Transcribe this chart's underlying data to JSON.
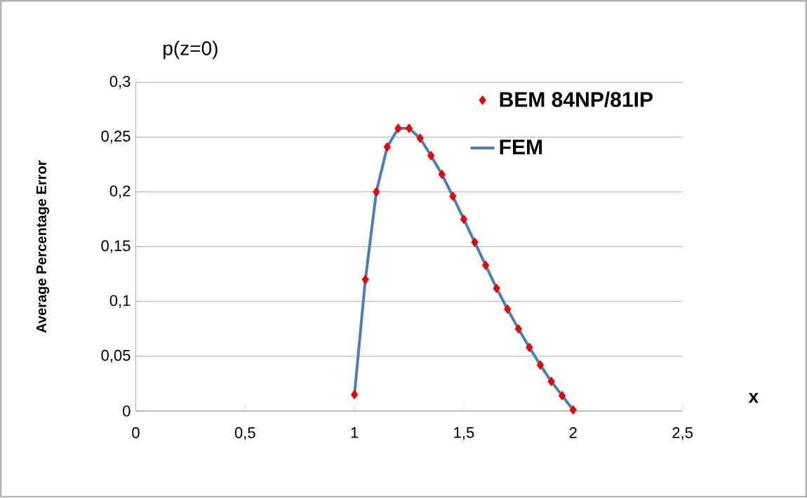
{
  "chart_data": {
    "type": "line",
    "title": "p(z=0)",
    "xlabel": "x",
    "ylabel": "Average Percentage Error",
    "xlim": [
      0,
      2.5
    ],
    "ylim": [
      0,
      0.3
    ],
    "xticks": [
      0,
      {
        "value": 0.5,
        "label": "0,5"
      },
      1,
      {
        "value": 1.5,
        "label": "1,5"
      },
      2,
      {
        "value": 2.5,
        "label": "2,5"
      }
    ],
    "yticks": [
      0,
      {
        "value": 0.05,
        "label": "0,05"
      },
      {
        "value": 0.1,
        "label": "0,1"
      },
      {
        "value": 0.15,
        "label": "0,15"
      },
      {
        "value": 0.2,
        "label": "0,2"
      },
      {
        "value": 0.25,
        "label": "0,25"
      },
      {
        "value": 0.3,
        "label": "0,3"
      }
    ],
    "grid": "y",
    "legend": "top right",
    "series": [
      {
        "name": "BEM 84NP/81IP",
        "type": "scatter",
        "marker": "diamond",
        "color": "#ee0000",
        "x": [
          1,
          1.05,
          1.1,
          1.15,
          1.2,
          1.25,
          1.3,
          1.35,
          1.4,
          1.45,
          1.5,
          1.55,
          1.6,
          1.65,
          1.7,
          1.75,
          1.8,
          1.85,
          1.9,
          1.95,
          2
        ],
        "values": [
          0.015,
          0.12,
          0.2,
          0.241,
          0.258,
          0.258,
          0.249,
          0.233,
          0.216,
          0.196,
          0.175,
          0.154,
          0.133,
          0.112,
          0.093,
          0.075,
          0.058,
          0.042,
          0.027,
          0.014,
          0.001
        ]
      },
      {
        "name": "FEM",
        "marker": "none",
        "line_style": "solid",
        "color": "#4a7ebb",
        "x": [
          1,
          1.05,
          1.1,
          1.15,
          1.2,
          1.25,
          1.3,
          1.35,
          1.4,
          1.45,
          1.5,
          1.55,
          1.6,
          1.65,
          1.7,
          1.75,
          1.8,
          1.85,
          1.9,
          1.95,
          2
        ],
        "values": [
          0.015,
          0.12,
          0.2,
          0.241,
          0.258,
          0.258,
          0.249,
          0.233,
          0.216,
          0.196,
          0.175,
          0.154,
          0.133,
          0.112,
          0.093,
          0.075,
          0.058,
          0.042,
          0.027,
          0.014,
          0.001
        ]
      }
    ]
  }
}
